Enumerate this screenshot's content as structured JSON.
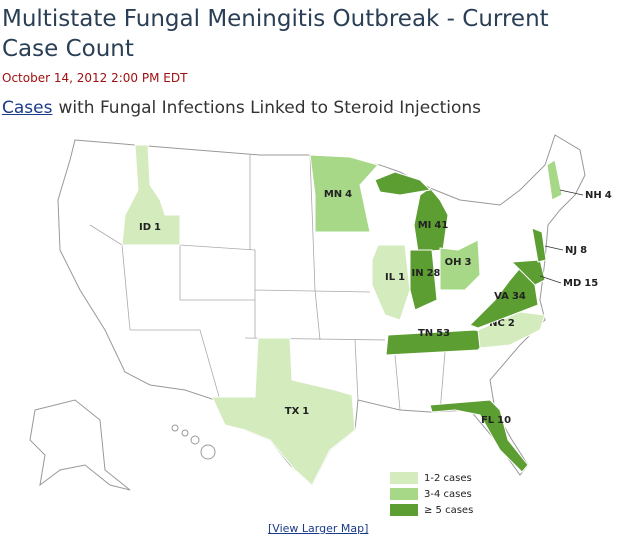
{
  "header": {
    "title": "Multistate Fungal Meningitis Outbreak - Current Case Count",
    "date": "October 14, 2012 2:00 PM EDT"
  },
  "subtitle": {
    "link": "Cases",
    "text": "with Fungal Infections Linked to Steroid Injections"
  },
  "states": [
    {
      "abbr": "ID",
      "cases": 1,
      "color": "#d3ebbd"
    },
    {
      "abbr": "MN",
      "cases": 4,
      "color": "#a6d887"
    },
    {
      "abbr": "MI",
      "cases": 41,
      "color": "#5c9e32"
    },
    {
      "abbr": "IL",
      "cases": 1,
      "color": "#d3ebbd"
    },
    {
      "abbr": "IN",
      "cases": 28,
      "color": "#5c9e32"
    },
    {
      "abbr": "OH",
      "cases": 3,
      "color": "#a6d887"
    },
    {
      "abbr": "TN",
      "cases": 53,
      "color": "#5c9e32"
    },
    {
      "abbr": "NC",
      "cases": 2,
      "color": "#d3ebbd"
    },
    {
      "abbr": "VA",
      "cases": 34,
      "color": "#5c9e32"
    },
    {
      "abbr": "MD",
      "cases": 15,
      "color": "#5c9e32"
    },
    {
      "abbr": "NJ",
      "cases": 8,
      "color": "#5c9e32"
    },
    {
      "abbr": "NH",
      "cases": 4,
      "color": "#a6d887"
    },
    {
      "abbr": "FL",
      "cases": 10,
      "color": "#5c9e32"
    },
    {
      "abbr": "TX",
      "cases": 1,
      "color": "#d3ebbd"
    }
  ],
  "legend": [
    {
      "label": "1-2 cases",
      "color": "#d3ebbd"
    },
    {
      "label": "3-4 cases",
      "color": "#a6d887"
    },
    {
      "label": "≥ 5 cases",
      "color": "#5c9e32"
    }
  ],
  "link": "[View Larger Map]"
}
